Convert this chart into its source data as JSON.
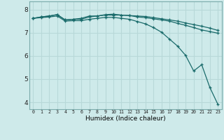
{
  "xlabel": "Humidex (Indice chaleur)",
  "background_color": "#ceeaea",
  "grid_color": "#b8d8d8",
  "line_color": "#1a6b6b",
  "ylim": [
    3.7,
    8.35
  ],
  "xlim": [
    -0.5,
    23.5
  ],
  "series": [
    {
      "x": [
        0,
        1,
        2,
        3,
        4,
        5,
        6,
        7,
        8,
        9,
        10,
        11,
        12,
        13,
        14,
        15,
        16,
        17,
        18,
        19,
        20,
        21,
        22,
        23
      ],
      "y": [
        7.62,
        7.68,
        7.72,
        7.78,
        7.55,
        7.58,
        7.62,
        7.72,
        7.72,
        7.78,
        7.8,
        7.76,
        7.74,
        7.72,
        7.7,
        7.65,
        7.6,
        7.55,
        7.5,
        7.42,
        7.35,
        7.28,
        7.2,
        7.1
      ]
    },
    {
      "x": [
        0,
        1,
        2,
        3,
        4,
        5,
        6,
        7,
        8,
        9,
        10,
        11,
        12,
        13,
        14,
        15,
        16,
        17,
        18,
        19,
        20,
        21,
        22,
        23
      ],
      "y": [
        7.62,
        7.68,
        7.72,
        7.78,
        7.55,
        7.58,
        7.58,
        7.68,
        7.72,
        7.76,
        7.76,
        7.76,
        7.74,
        7.68,
        7.65,
        7.6,
        7.55,
        7.5,
        7.4,
        7.32,
        7.22,
        7.12,
        7.05,
        6.98
      ]
    },
    {
      "x": [
        0,
        1,
        2,
        3,
        4,
        5,
        6,
        7,
        8,
        9,
        10,
        11,
        12,
        13,
        14,
        15,
        16,
        17,
        18,
        19,
        20,
        21,
        22,
        23
      ],
      "y": [
        7.62,
        7.65,
        7.68,
        7.72,
        7.5,
        7.52,
        7.52,
        7.58,
        7.62,
        7.66,
        7.66,
        7.62,
        7.58,
        7.48,
        7.38,
        7.22,
        7.02,
        6.72,
        6.42,
        6.02,
        5.35,
        5.62,
        4.65,
        3.92
      ]
    }
  ]
}
